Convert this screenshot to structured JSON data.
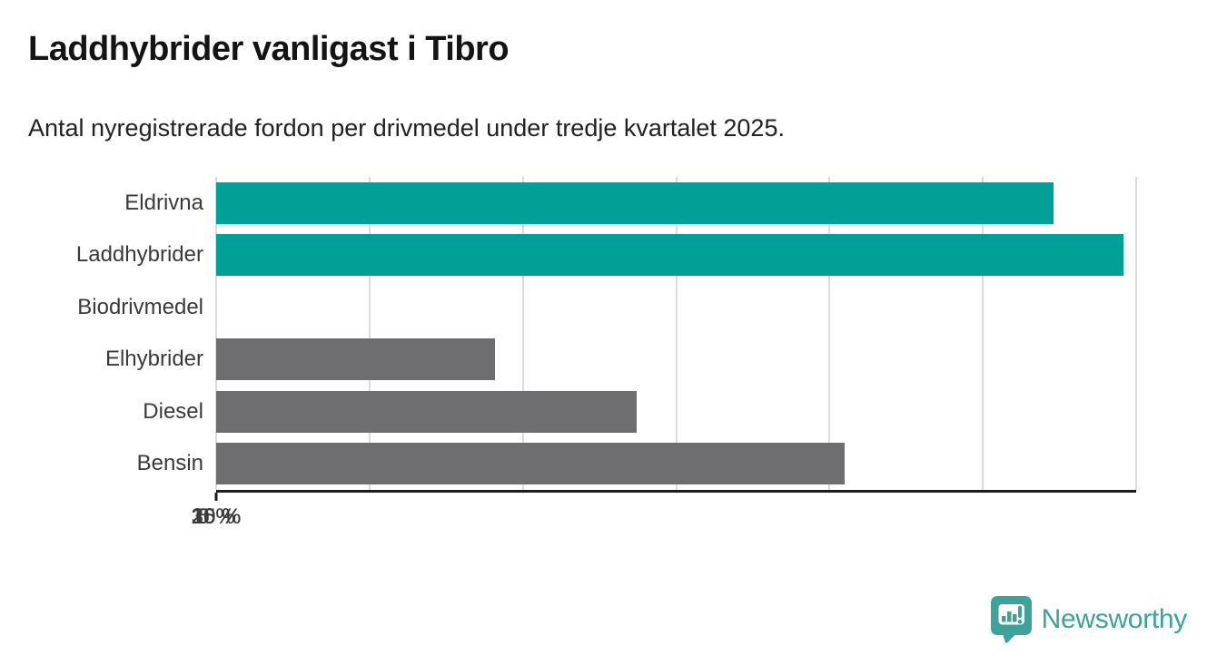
{
  "header": {
    "title": "Laddhybrider vanligast i Tibro",
    "subtitle": "Antal nyregistrerade fordon per drivmedel under tredje kvartalet 2025."
  },
  "chart_data": {
    "type": "bar",
    "orientation": "horizontal",
    "title": "Laddhybrider vanligast i Tibro",
    "subtitle": "Antal nyregistrerade fordon per drivmedel under tredje kvartalet 2025.",
    "categories": [
      "Eldrivna",
      "Laddhybrider",
      "Biodrivmedel",
      "Elhybrider",
      "Diesel",
      "Bensin"
    ],
    "values": [
      27.3,
      29.6,
      0,
      9.1,
      13.7,
      20.5
    ],
    "unit": "%",
    "xlim": [
      0,
      30
    ],
    "tick_labels": [
      "0 %",
      "5 %",
      "10 %",
      "15 %",
      "20 %",
      "25 %",
      "30 %"
    ],
    "bar_colors": [
      "#00a096",
      "#00a096",
      "#6e6e71",
      "#6e6e71",
      "#6e6e71",
      "#6e6e71"
    ],
    "highlight_color": "#00a096",
    "default_color": "#6e6e71",
    "gridline_color": "#dcdcdc",
    "grid": true,
    "legend": false
  },
  "footer": {
    "brand": "Newsworthy",
    "brand_color": "#3ea29a",
    "logo_icon": "newsworthy-badge-icon"
  }
}
